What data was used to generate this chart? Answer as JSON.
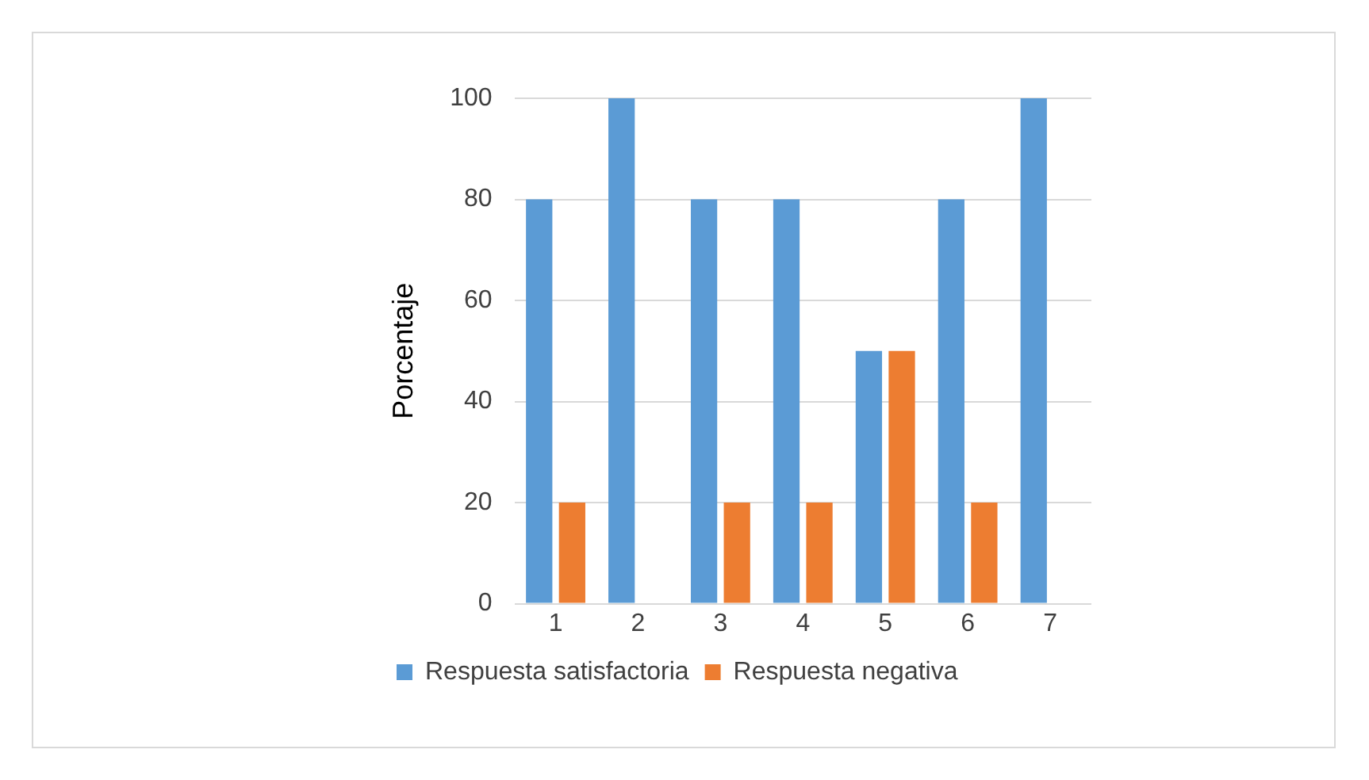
{
  "chart_data": {
    "type": "bar",
    "ylabel": "Porcentaje",
    "categories": [
      "1",
      "2",
      "3",
      "4",
      "5",
      "6",
      "7"
    ],
    "series": [
      {
        "name": "Respuesta satisfactoria",
        "color": "#5b9bd5",
        "values": [
          80,
          100,
          80,
          80,
          50,
          80,
          100
        ]
      },
      {
        "name": "Respuesta negativa",
        "color": "#ed7d31",
        "values": [
          20,
          0,
          20,
          20,
          50,
          20,
          0
        ]
      }
    ],
    "ylim": [
      0,
      100
    ],
    "yticks": [
      0,
      20,
      40,
      60,
      80,
      100
    ],
    "grid": "y",
    "legend": "bottom"
  }
}
